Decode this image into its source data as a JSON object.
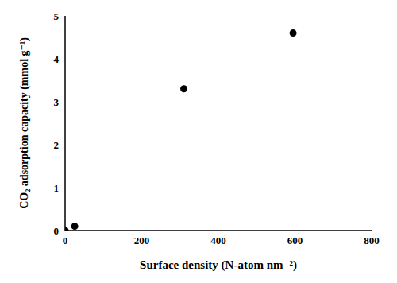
{
  "chart_data": {
    "type": "scatter",
    "x_label": "Surface density (N-atom nm⁻²)",
    "y_label": "CO₂ adsorption capacity (mmol g⁻¹)",
    "x": [
      0,
      25,
      310,
      595
    ],
    "values": [
      0.0,
      0.1,
      3.3,
      4.6
    ],
    "color": "#000000",
    "marker": "circle",
    "xlim": [
      0,
      800
    ],
    "xticks": [
      0,
      200,
      400,
      600,
      800
    ],
    "ylim": [
      0,
      5
    ],
    "yticks": [
      0,
      1,
      2,
      3,
      4,
      5
    ],
    "grid": false
  }
}
